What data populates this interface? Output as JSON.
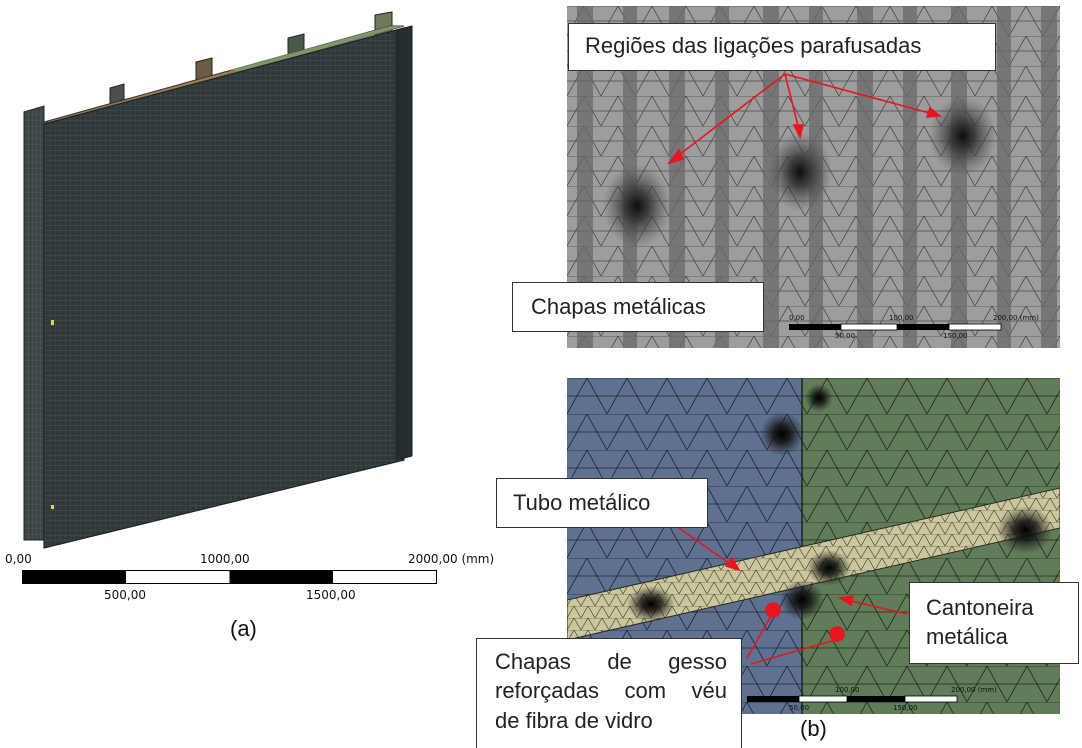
{
  "panel_a": {
    "caption": "(a)",
    "scale": {
      "top_labels": [
        "0,00",
        "1000,00",
        "2000,00 (mm)"
      ],
      "bottom_labels": [
        "500,00",
        "1500,00"
      ]
    }
  },
  "panel_b": {
    "caption": "(b)",
    "top_view": {
      "callout_bolts": "Regiões das ligações parafusadas",
      "callout_sheets": "Chapas metálicas",
      "scale_labels": [
        "0,00",
        "100,00",
        "200,00 (mm)",
        "50,00",
        "150,00"
      ]
    },
    "bottom_view": {
      "callout_tube": "Tubo metálico",
      "callout_angle": [
        "Cantoneira",
        "metálica"
      ],
      "callout_gypsum": [
        "Chapas de gesso",
        "reforçadas com véu",
        "de fibra de vidro"
      ],
      "scale_labels": [
        "100,00",
        "200,00 (mm)",
        "50,00",
        "150,00"
      ]
    }
  },
  "colors": {
    "wall_mesh": "#2b3336",
    "top_mesh_bg": "#9a9a9a",
    "blue_region": "#5d6f8c",
    "green_region": "#5f7a56",
    "tube": "#c9c49a",
    "arrow": "#e8141e"
  }
}
